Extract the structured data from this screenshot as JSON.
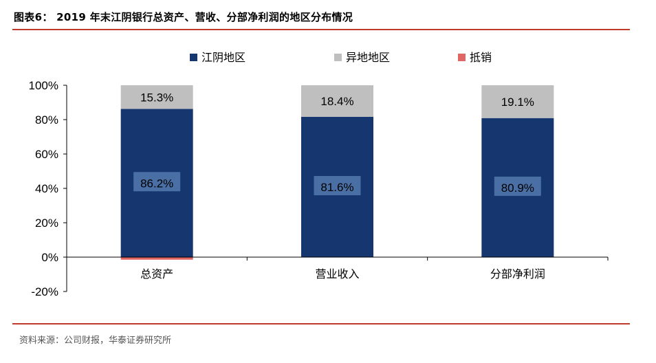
{
  "title": "图表6： 2019 年末江阴银行总资产、营收、分部净利润的地区分布情况",
  "source": "资料来源：公司财报，华泰证券研究所",
  "colors": {
    "jiangyin": "#15366f",
    "other": "#bfbfbf",
    "offset": "#e06666",
    "label_box": "#4a6fa5",
    "rule": "#c0392b"
  },
  "chart_data": {
    "type": "bar",
    "stacked": true,
    "categories": [
      "总资产",
      "营业收入",
      "分部净利润"
    ],
    "series": [
      {
        "name": "江阴地区",
        "values": [
          86.2,
          81.6,
          80.9
        ],
        "labels": [
          "86.2%",
          "81.6%",
          "80.9%"
        ]
      },
      {
        "name": "异地地区",
        "values": [
          15.3,
          18.4,
          19.1
        ],
        "labels": [
          "15.3%",
          "18.4%",
          "19.1%"
        ]
      },
      {
        "name": "抵销",
        "values": [
          -1.5,
          0,
          0
        ]
      }
    ],
    "ylim": [
      -20,
      100
    ],
    "yticks": [
      -20,
      0,
      20,
      40,
      60,
      80,
      100
    ],
    "ytick_labels": [
      "-20%",
      "0%",
      "20%",
      "40%",
      "60%",
      "80%",
      "100%"
    ],
    "legend_position": "top",
    "grid": false
  }
}
